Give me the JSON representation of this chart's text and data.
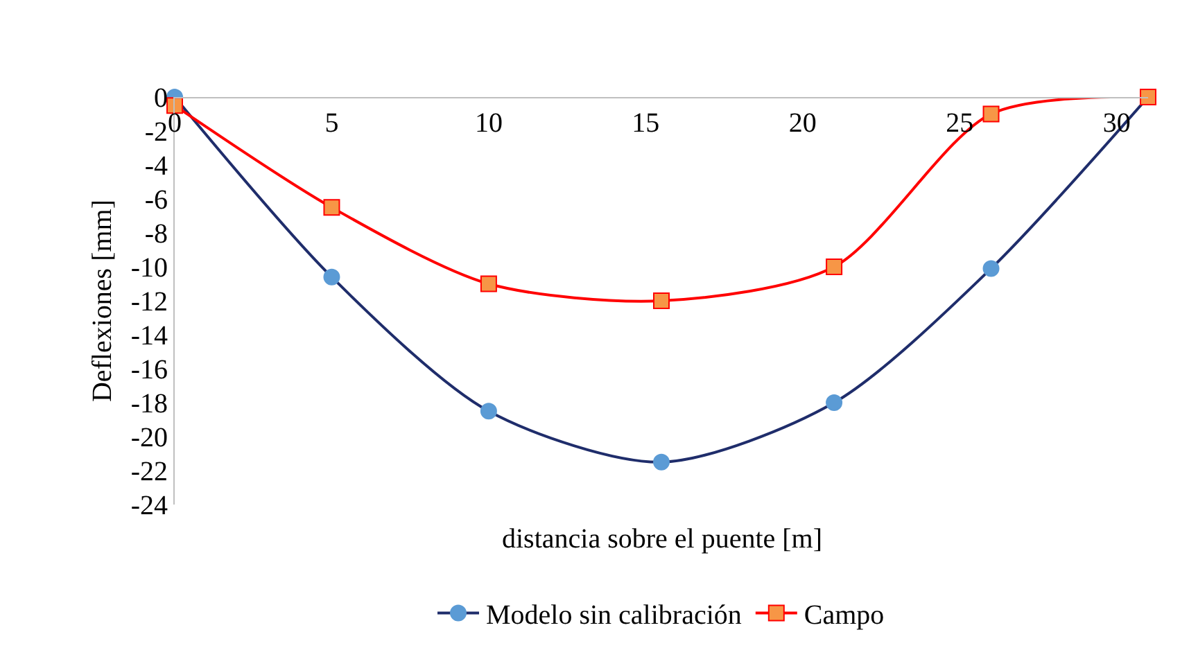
{
  "chart_data": {
    "type": "line",
    "xlabel": "distancia sobre el puente [m]",
    "ylabel": "Deflexiones [mm]",
    "xlim": [
      0,
      31
    ],
    "xticks": [
      0,
      5,
      10,
      15,
      20,
      25,
      30
    ],
    "ylim": [
      -24,
      0
    ],
    "yticks": [
      -24,
      -22,
      -20,
      -18,
      -16,
      -14,
      -12,
      -10,
      -8,
      -6,
      -4,
      -2,
      0
    ],
    "grid": false,
    "legend": "bottom",
    "line_style": "solid",
    "series": [
      {
        "name": "Modelo sin calibración",
        "color": "#1f2d6b",
        "marker": "circle",
        "colors": [
          "#5b9bd5",
          "#5b9bd5",
          "#5b9bd5",
          "#5b9bd5",
          "#5b9bd5",
          "#5b9bd5",
          "#5b9bd5"
        ],
        "x": [
          0,
          5,
          10,
          15.5,
          21,
          26,
          31
        ],
        "values": [
          0,
          -10.6,
          -18.5,
          -21.5,
          -18,
          -10.1,
          0
        ]
      },
      {
        "name": "Campo",
        "color": "#ff0000",
        "marker": "square",
        "colors": [
          "#f79646",
          "#f79646",
          "#f79646",
          "#f79646",
          "#f79646",
          "#f79646",
          "#f79646"
        ],
        "x": [
          0,
          5,
          10,
          15.5,
          21,
          26,
          31
        ],
        "values": [
          -0.5,
          -6.5,
          -11,
          -12,
          -10,
          -1,
          0
        ]
      }
    ]
  }
}
